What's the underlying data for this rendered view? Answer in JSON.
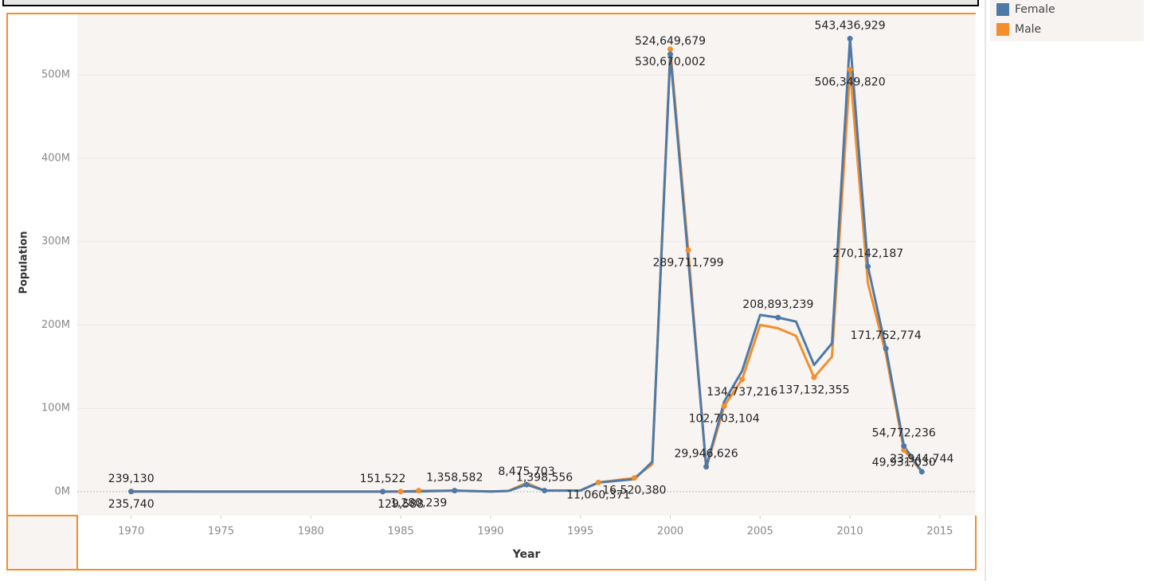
{
  "chart_data": {
    "type": "line",
    "x_label": "Year",
    "y_label": "Population",
    "x": [
      1970,
      1984,
      1985,
      1986,
      1988,
      1990,
      1991,
      1992,
      1993,
      1995,
      1996,
      1998,
      1999,
      2000,
      2001,
      2002,
      2003,
      2004,
      2005,
      2006,
      2007,
      2008,
      2009,
      2010,
      2011,
      2012,
      2013,
      2014
    ],
    "series": [
      {
        "name": "Female",
        "color": "#4e79a7",
        "values": [
          239130,
          151522,
          200000,
          322000,
          1358582,
          300000,
          1000000,
          8475703,
          1398556,
          1500000,
          11000000,
          15000000,
          36000000,
          524649679,
          280000000,
          29946626,
          108000000,
          145000000,
          212000000,
          208893239,
          204000000,
          152000000,
          178000000,
          543436929,
          270142187,
          171752774,
          54772236,
          23944744
        ],
        "value_labels": [
          "239,130",
          "151,522",
          null,
          null,
          "1,358,582",
          null,
          null,
          "8,475,703",
          "1,398,556",
          null,
          null,
          null,
          null,
          "524,649,679",
          null,
          "29,946,626",
          null,
          null,
          null,
          "208,893,239",
          null,
          null,
          null,
          "543,436,929",
          "270,142,187",
          "171,752,774",
          "54,772,236",
          "23,944,744"
        ]
      },
      {
        "name": "Male",
        "color": "#f28e2b",
        "values": [
          235740,
          140000,
          129588,
          1280239,
          1300000,
          300000,
          1000000,
          10500000,
          1398556,
          1600000,
          11060371,
          16520380,
          33000000,
          530670002,
          289711799,
          28000000,
          102703104,
          134737216,
          200000000,
          196000000,
          187000000,
          137132355,
          162000000,
          506349820,
          250000000,
          165000000,
          49931030,
          24000000
        ],
        "value_labels": [
          "235,740",
          null,
          "129,588",
          "1,280,239",
          null,
          null,
          null,
          null,
          null,
          null,
          "11,060,371",
          "16,520,380",
          null,
          "530,670,002",
          "289,711,799",
          null,
          "102,703,104",
          "134,737,216",
          null,
          null,
          null,
          "137,132,355",
          null,
          "506,349,820",
          null,
          null,
          "49,931,030",
          null
        ]
      }
    ],
    "xlim": [
      1967,
      2017
    ],
    "xticks": [
      1970,
      1975,
      1980,
      1985,
      1990,
      1995,
      2000,
      2005,
      2010,
      2015
    ],
    "ylim": [
      -28600000,
      573500000
    ],
    "yticks": [
      {
        "value": 0,
        "label": "0M"
      },
      {
        "value": 100000000,
        "label": "100M"
      },
      {
        "value": 200000000,
        "label": "200M"
      },
      {
        "value": 300000000,
        "label": "300M"
      },
      {
        "value": 400000000,
        "label": "400M"
      },
      {
        "value": 500000000,
        "label": "500M"
      }
    ],
    "grid": true,
    "legend": "top-right"
  }
}
